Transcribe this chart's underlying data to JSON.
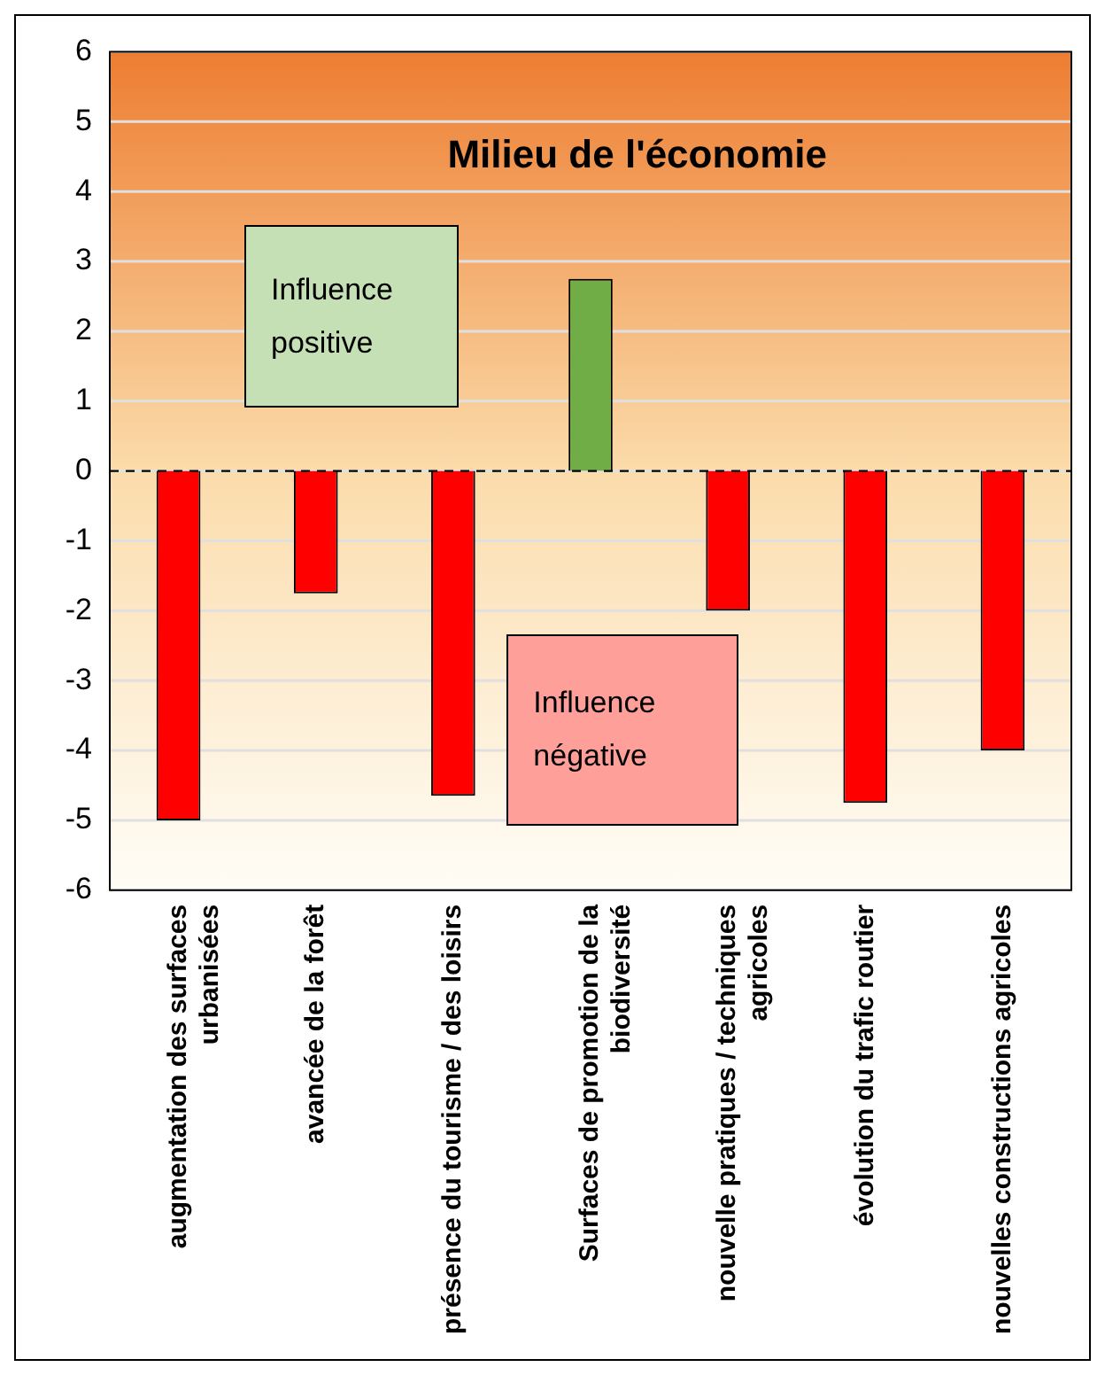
{
  "chart_data": {
    "type": "bar",
    "title": "Milieu de l'économie",
    "categories": [
      "augmentation des surfaces urbanisées",
      "avancée de la forêt",
      "présence du tourisme / des loisirs",
      "Surfaces de promotion de la biodiversité",
      "nouvelle pratiques / techniques agricoles",
      "évolution du trafic routier",
      "nouvelles constructions agricoles"
    ],
    "values": [
      -5,
      -1.75,
      -4.65,
      2.75,
      -2,
      -4.75,
      -4
    ],
    "colors": [
      "#ff0000",
      "#ff0000",
      "#ff0000",
      "#70ad47",
      "#ff0000",
      "#ff0000",
      "#ff0000"
    ],
    "ylim": [
      -6,
      6
    ],
    "yticks": [
      -6,
      -5,
      -4,
      -3,
      -2,
      -1,
      0,
      1,
      2,
      3,
      4,
      5,
      6
    ],
    "grid": "y",
    "ref_lines": [
      {
        "axis": "y",
        "value": 0,
        "color": "#000000",
        "line_style": "dashed"
      }
    ],
    "annotations": [
      "Influence positive",
      "Influence négative"
    ],
    "legend": false
  }
}
